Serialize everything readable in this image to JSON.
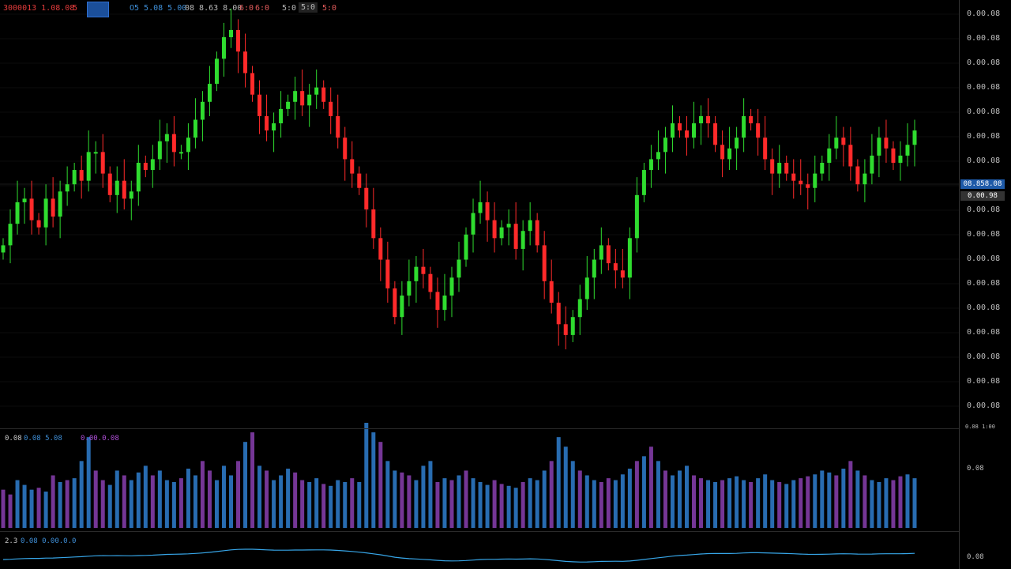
{
  "toolbar": {
    "symbol": "3000013 1.08.08",
    "interval": "5",
    "open_text": "O5 5.08 5.00",
    "high_text": "08 8.63 8.00",
    "ind1": "6:0",
    "ind2": "6:0",
    "ind3": "5:0",
    "ind4": "5:0",
    "ind5": "5:0"
  },
  "price_axis": {
    "ticks": [
      "0.00.08",
      "0.00.08",
      "0.00.08",
      "0.00.08",
      "0.00.08",
      "0.00.08",
      "0.00.08",
      "0.00.08",
      "0.00.08",
      "0.00.08",
      "0.00.08",
      "0.00.08",
      "0.00.08",
      "0.00.08",
      "0.00.08",
      "0.00.08",
      "0.00.08"
    ],
    "last_price_label": "08.858.08",
    "last_price_label2": "0.00.98"
  },
  "volume_pane": {
    "legend_main": "0.08",
    "legend_val1": "0.08  5.08",
    "legend_val2": "0.00.0.08",
    "axis_label": "0.08",
    "scale_label": "0.08 1:00"
  },
  "osc_pane": {
    "legend_main": "2.3",
    "legend_val": "0.08  0.00.0.0",
    "axis_label": "0.08"
  },
  "colors": {
    "up": "#2fdc2f",
    "down": "#ff2a2a",
    "volume_blue": "#2f7fd0",
    "volume_purple": "#8a3fb0",
    "osc_line": "#37a6e8",
    "background": "#000000"
  },
  "chart_data": {
    "type": "candlestick",
    "y_range": [
      0,
      100
    ],
    "closes": [
      40,
      46,
      52,
      53,
      47,
      45,
      53,
      48,
      55,
      57,
      61,
      58,
      66,
      66,
      60,
      54,
      58,
      53,
      55,
      63,
      61,
      64,
      69,
      71,
      66,
      66,
      70,
      75,
      80,
      85,
      92,
      98,
      100,
      94,
      88,
      82,
      76,
      72,
      74,
      78,
      80,
      83,
      79,
      82,
      84,
      80,
      76,
      70,
      64,
      60,
      56,
      50,
      42,
      36,
      28,
      20,
      26,
      30,
      34,
      32,
      27,
      22,
      26,
      31,
      36,
      43,
      49,
      52,
      47,
      42,
      45,
      46,
      39,
      44,
      47,
      40,
      30,
      24,
      18,
      15,
      20,
      25,
      31,
      36,
      40,
      35,
      33,
      31,
      42,
      54,
      61,
      64,
      66,
      70,
      74,
      72,
      70,
      74,
      76,
      74,
      68,
      64,
      67,
      70,
      76,
      74,
      70,
      64,
      60,
      63,
      60,
      58,
      57,
      56,
      60,
      63,
      67,
      70,
      68,
      62,
      57,
      60,
      65,
      70,
      67,
      63,
      65,
      68,
      72
    ],
    "volumes": [
      40,
      35,
      50,
      45,
      40,
      42,
      38,
      55,
      48,
      50,
      52,
      70,
      95,
      60,
      50,
      45,
      60,
      55,
      50,
      58,
      65,
      55,
      60,
      50,
      48,
      52,
      62,
      55,
      70,
      60,
      50,
      65,
      55,
      70,
      90,
      100,
      65,
      60,
      50,
      55,
      62,
      58,
      50,
      48,
      52,
      46,
      44,
      50,
      48,
      52,
      48,
      110,
      100,
      90,
      70,
      60,
      58,
      55,
      50,
      65,
      70,
      48,
      52,
      50,
      55,
      60,
      52,
      48,
      45,
      50,
      46,
      44,
      42,
      48,
      52,
      50,
      60,
      70,
      95,
      85,
      70,
      60,
      55,
      50,
      48,
      52,
      50,
      56,
      62,
      70,
      75,
      85,
      70,
      60,
      55,
      60,
      65,
      55,
      52,
      50,
      48,
      50,
      52,
      54,
      50,
      48,
      52,
      56,
      50,
      48,
      46,
      50,
      52,
      54,
      56,
      60,
      58,
      55,
      62,
      70,
      60,
      55,
      50,
      48,
      52,
      50,
      54,
      56,
      52
    ]
  }
}
